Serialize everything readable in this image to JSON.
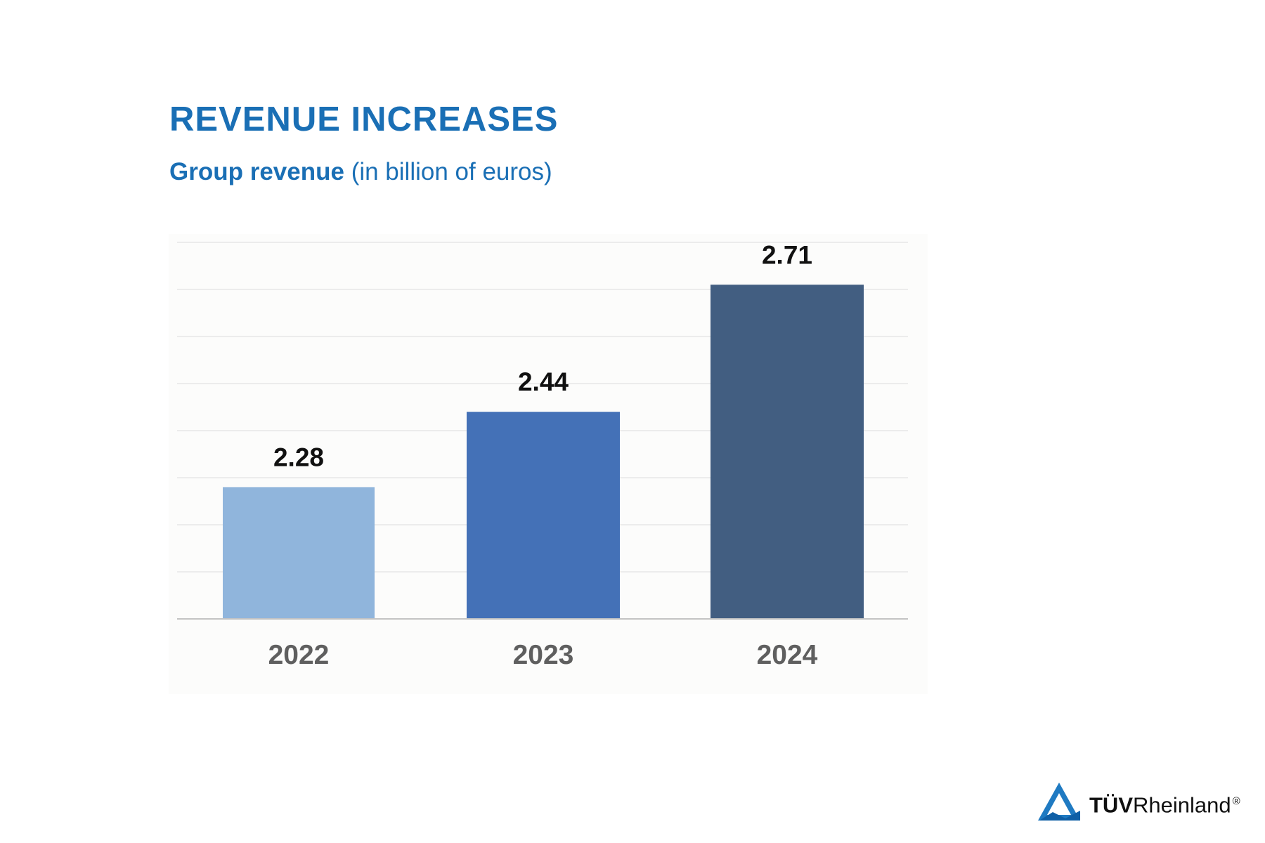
{
  "title": "REVENUE INCREASES",
  "subtitle": {
    "strong": "Group revenue",
    "light": "(in billion of euros)"
  },
  "colors": {
    "brand_blue": "#1a6fb5",
    "grid": "#ececec",
    "axis": "#c4c4c4",
    "chart_bg": "#fcfcfb",
    "tick_label": "#5f5f5f",
    "data_label": "#111111"
  },
  "chart_data": {
    "type": "bar",
    "categories": [
      "2022",
      "2023",
      "2024"
    ],
    "values": [
      2.28,
      2.44,
      2.71
    ],
    "data_labels": [
      "2.28",
      "2.44",
      "2.71"
    ],
    "bar_colors": [
      "#90b5dc",
      "#4471b7",
      "#425e81"
    ],
    "title": "REVENUE INCREASES",
    "subtitle": "Group revenue (in billion of euros)",
    "xlabel": "",
    "ylabel": "",
    "ylim": [
      2.0,
      2.8
    ],
    "gridlines": [
      2.0,
      2.1,
      2.2,
      2.3,
      2.4,
      2.5,
      2.6,
      2.7,
      2.8
    ],
    "grid": true,
    "legend": "none"
  },
  "logo": {
    "brand": "TÜVRheinland®",
    "icon": "tuv-triangle-icon",
    "tuv": "TÜV",
    "rheinland": "Rheinland",
    "registered": "®"
  }
}
